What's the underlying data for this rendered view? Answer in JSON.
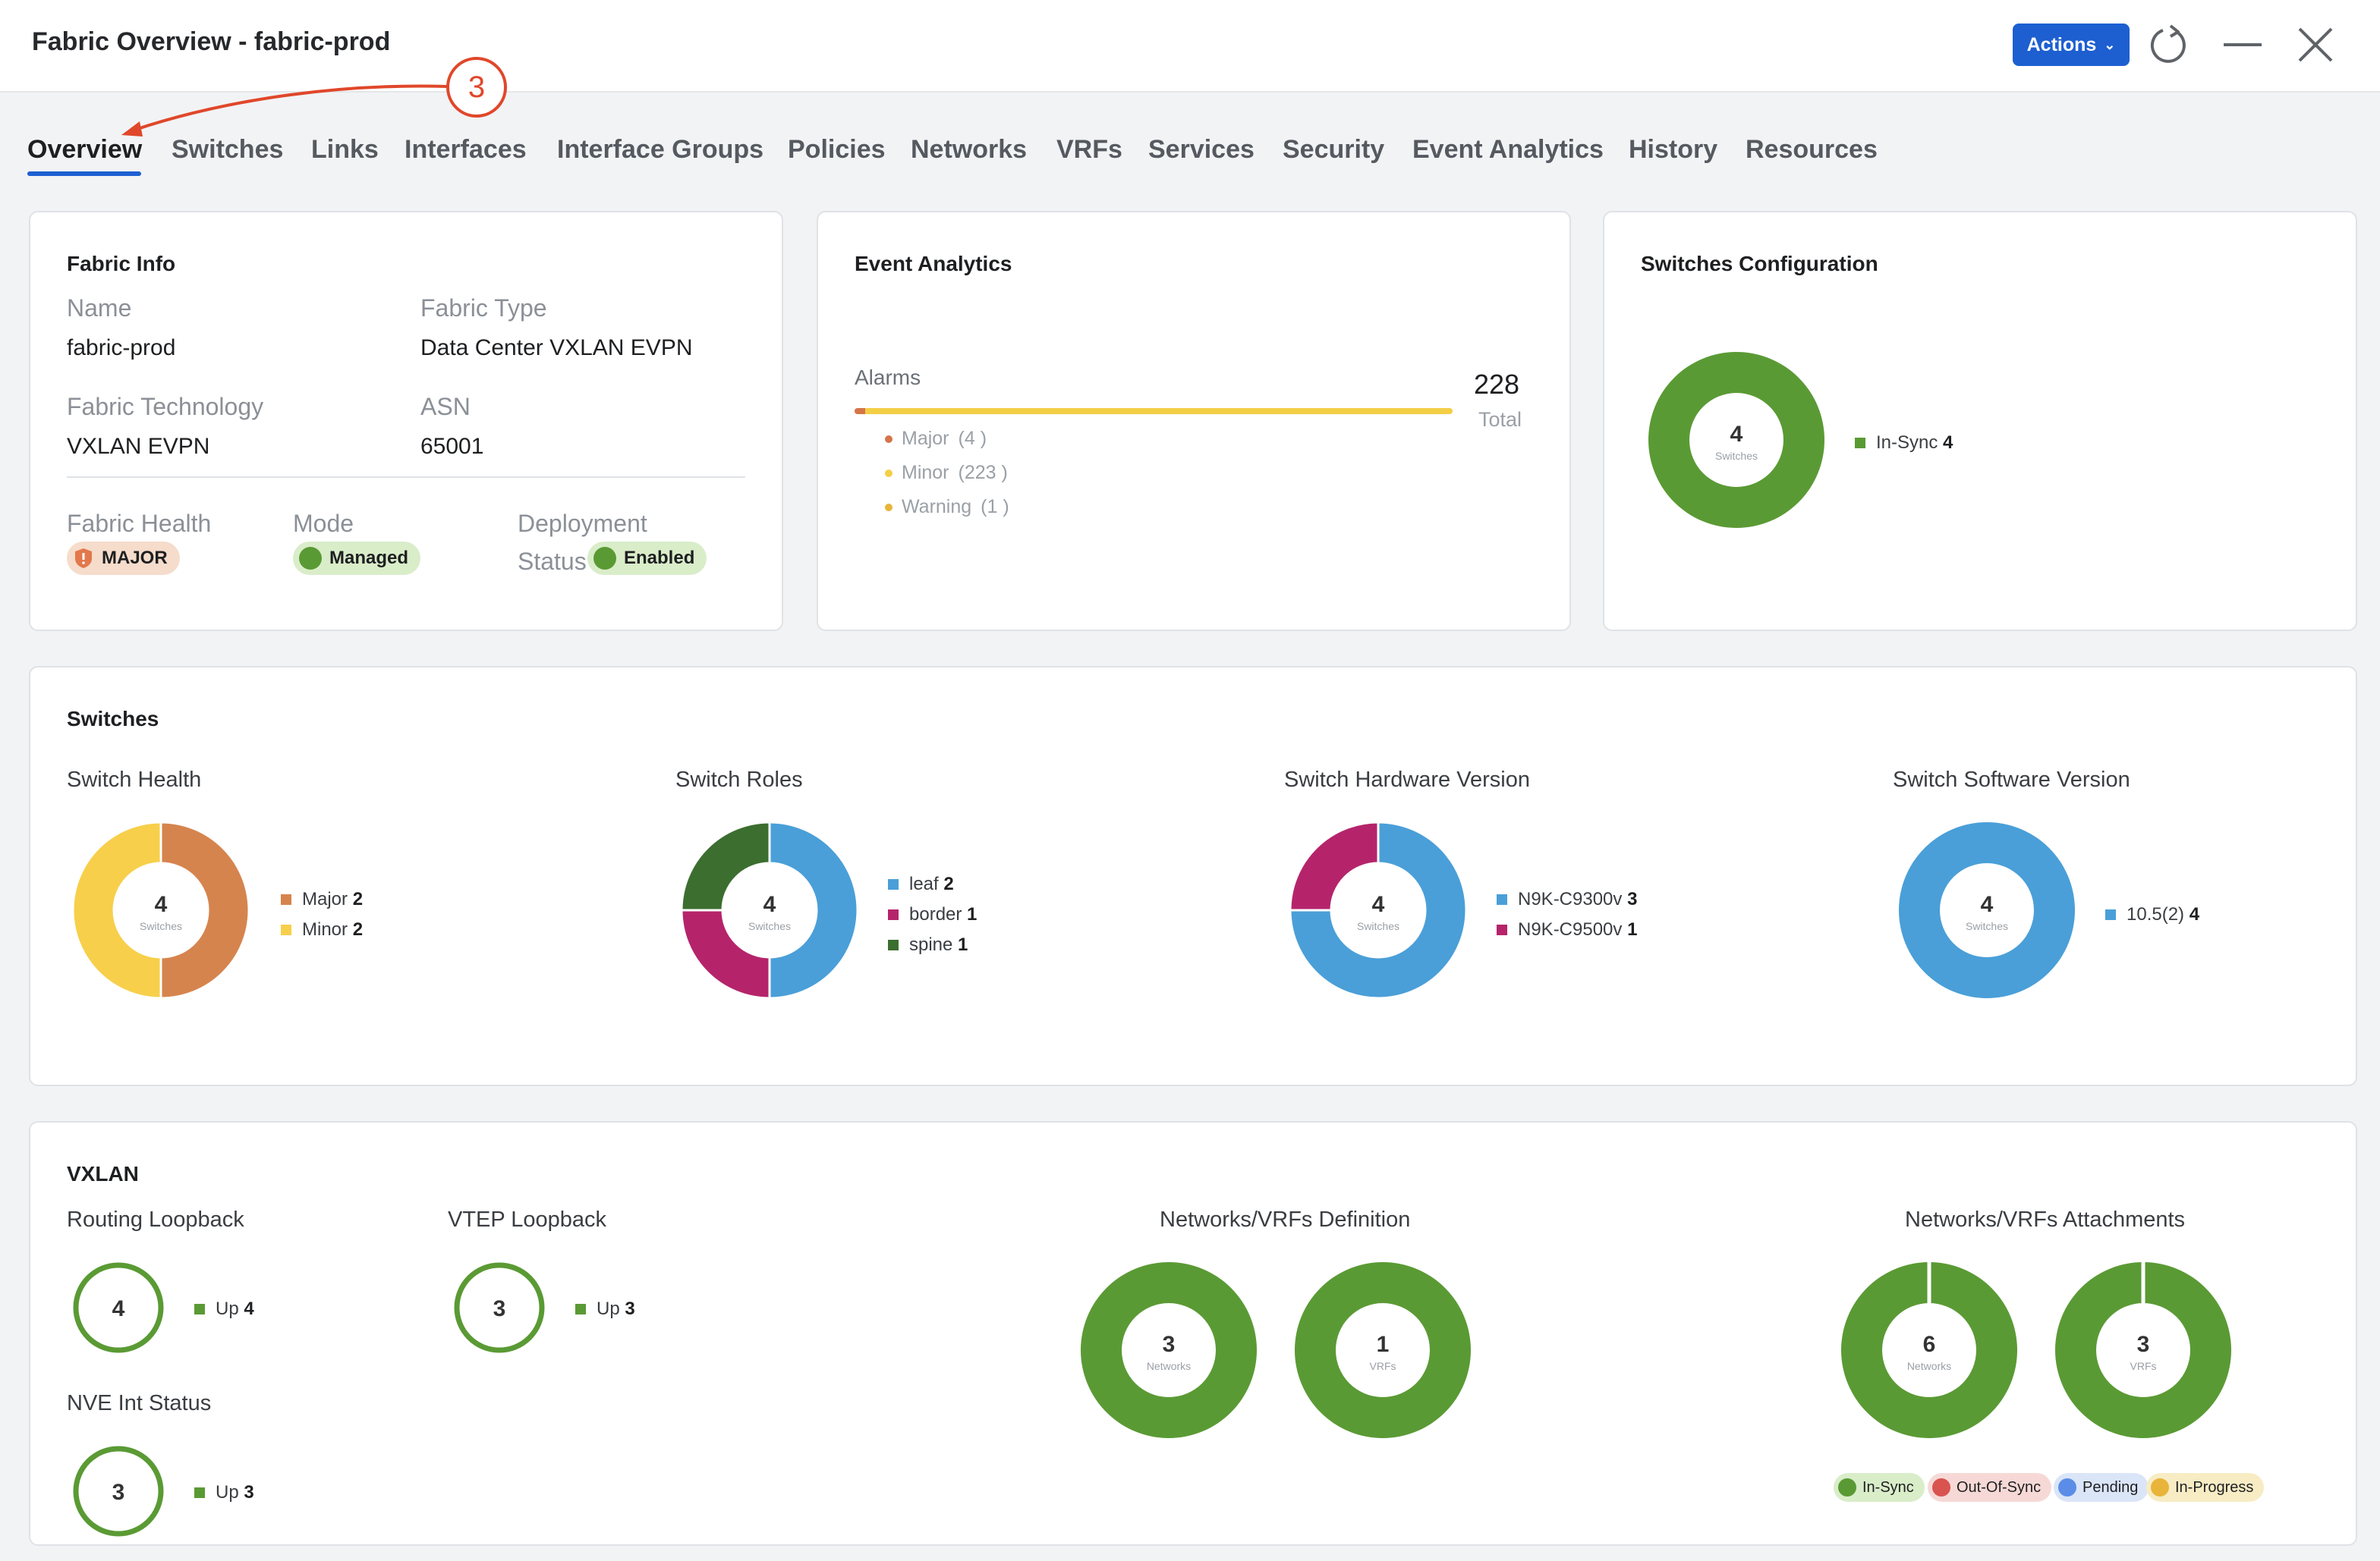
{
  "window": {
    "title": "Fabric Overview - fabric-prod",
    "actions_label": "Actions",
    "callout_number": "3"
  },
  "tabs": [
    "Overview",
    "Switches",
    "Links",
    "Interfaces",
    "Interface Groups",
    "Policies",
    "Networks",
    "VRFs",
    "Services",
    "Security",
    "Event Analytics",
    "History",
    "Resources"
  ],
  "fabric_info": {
    "title": "Fabric Info",
    "name_label": "Name",
    "name_value": "fabric-prod",
    "type_label": "Fabric Type",
    "type_value": "Data Center VXLAN EVPN",
    "technology_label": "Fabric Technology",
    "technology_value": "VXLAN EVPN",
    "asn_label": "ASN",
    "asn_value": "65001",
    "health_label": "Fabric Health",
    "health_value": "MAJOR",
    "mode_label": "Mode",
    "mode_value": "Managed",
    "deployment_label_1": "Deployment",
    "deployment_label_2": "Status",
    "deployment_value": "Enabled"
  },
  "event_analytics": {
    "title": "Event Analytics",
    "alarms_label": "Alarms",
    "total_value": "228",
    "total_label": "Total",
    "major_fraction": 0.018,
    "items": [
      {
        "label": "Major",
        "count": "(4 )",
        "color": "#d6744a"
      },
      {
        "label": "Minor",
        "count": "(223 )",
        "color": "#f3cf46"
      },
      {
        "label": "Warning",
        "count": "(1 )",
        "color": "#e8b43a"
      }
    ]
  },
  "switches_config": {
    "title": "Switches Configuration",
    "donut_value": "4",
    "donut_unit": "Switches",
    "legend": [
      {
        "label": "In-Sync",
        "value": "4",
        "color": "#5a9a34"
      }
    ]
  },
  "switches": {
    "title": "Switches",
    "charts": [
      {
        "title": "Switch Health",
        "value": "4",
        "unit": "Switches",
        "slices": [
          {
            "label": "Major",
            "value": 2,
            "color": "#d6844e"
          },
          {
            "label": "Minor",
            "value": 2,
            "color": "#f7cf4a"
          }
        ]
      },
      {
        "title": "Switch Roles",
        "value": "4",
        "unit": "Switches",
        "slices": [
          {
            "label": "leaf",
            "value": 2,
            "color": "#4a9fd8"
          },
          {
            "label": "border",
            "value": 1,
            "color": "#b5246b"
          },
          {
            "label": "spine",
            "value": 1,
            "color": "#3b6e2f"
          }
        ]
      },
      {
        "title": "Switch Hardware Version",
        "value": "4",
        "unit": "Switches",
        "slices": [
          {
            "label": "N9K-C9300v",
            "value": 3,
            "color": "#4a9fd8"
          },
          {
            "label": "N9K-C9500v",
            "value": 1,
            "color": "#b5246b"
          }
        ]
      },
      {
        "title": "Switch Software Version",
        "value": "4",
        "unit": "Switches",
        "slices": [
          {
            "label": "10.5(2)",
            "value": 4,
            "color": "#4a9fd8"
          }
        ]
      }
    ]
  },
  "vxlan": {
    "title": "VXLAN",
    "routing_loopback": {
      "title": "Routing Loopback",
      "value": "4",
      "legend_label": "Up",
      "legend_value": "4"
    },
    "vtep_loopback": {
      "title": "VTEP Loopback",
      "value": "3",
      "legend_label": "Up",
      "legend_value": "3"
    },
    "nve_int_status": {
      "title": "NVE Int Status",
      "value": "3",
      "legend_label": "Up",
      "legend_value": "3"
    },
    "definition": {
      "title": "Networks/VRFs Definition",
      "donuts": [
        {
          "value": "3",
          "unit": "Networks"
        },
        {
          "value": "1",
          "unit": "VRFs"
        }
      ]
    },
    "attachments": {
      "title": "Networks/VRFs Attachments",
      "donuts": [
        {
          "value": "6",
          "unit": "Networks"
        },
        {
          "value": "3",
          "unit": "VRFs"
        }
      ],
      "status_legend": [
        {
          "label": "In-Sync",
          "color": "#5a9a34",
          "bg": "#d9edc9"
        },
        {
          "label": "Out-Of-Sync",
          "color": "#d9534f",
          "bg": "#f6d9d6"
        },
        {
          "label": "Pending",
          "color": "#5b8de8",
          "bg": "#dbe5f8"
        },
        {
          "label": "In-Progress",
          "color": "#e8b43a",
          "bg": "#f7ecc4"
        }
      ]
    }
  },
  "colors": {
    "accent": "#1d5fd1",
    "green": "#5a9a34",
    "callout": "#e0472a"
  }
}
